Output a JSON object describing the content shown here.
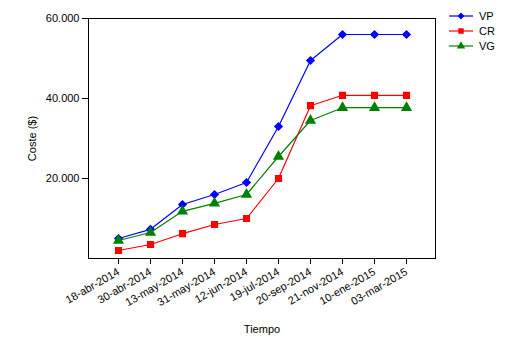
{
  "chart_data": {
    "type": "line",
    "x_label": "Tiempo",
    "y_label": "Coste ($)",
    "categories": [
      "18-abr-2014",
      "30-abr-2014",
      "13-may-2014",
      "31-may-2014",
      "12-jun-2014",
      "19-jul-2014",
      "20-sep-2014",
      "21-nov-2014",
      "10-ene-2015",
      "03-mar-2015"
    ],
    "series": [
      {
        "name": "VP",
        "color": "#0000ff",
        "marker": "diamond",
        "values": [
          5000,
          7300,
          13500,
          16000,
          19000,
          33000,
          49500,
          56000,
          56000,
          56000
        ]
      },
      {
        "name": "CR",
        "color": "#ff0000",
        "marker": "square",
        "values": [
          2000,
          3500,
          6200,
          8500,
          10000,
          20000,
          38200,
          40800,
          40800,
          40800
        ]
      },
      {
        "name": "VG",
        "color": "#008000",
        "marker": "triangle",
        "values": [
          4500,
          6500,
          11800,
          13800,
          16000,
          25500,
          34500,
          37700,
          37700,
          37700
        ]
      }
    ],
    "ylim": [
      0,
      60000
    ],
    "yticks": [
      {
        "value": 20000,
        "label": "20.000"
      },
      {
        "value": 40000,
        "label": "40.000"
      },
      {
        "value": 60000,
        "label": "60.000"
      }
    ],
    "legend": "right"
  }
}
